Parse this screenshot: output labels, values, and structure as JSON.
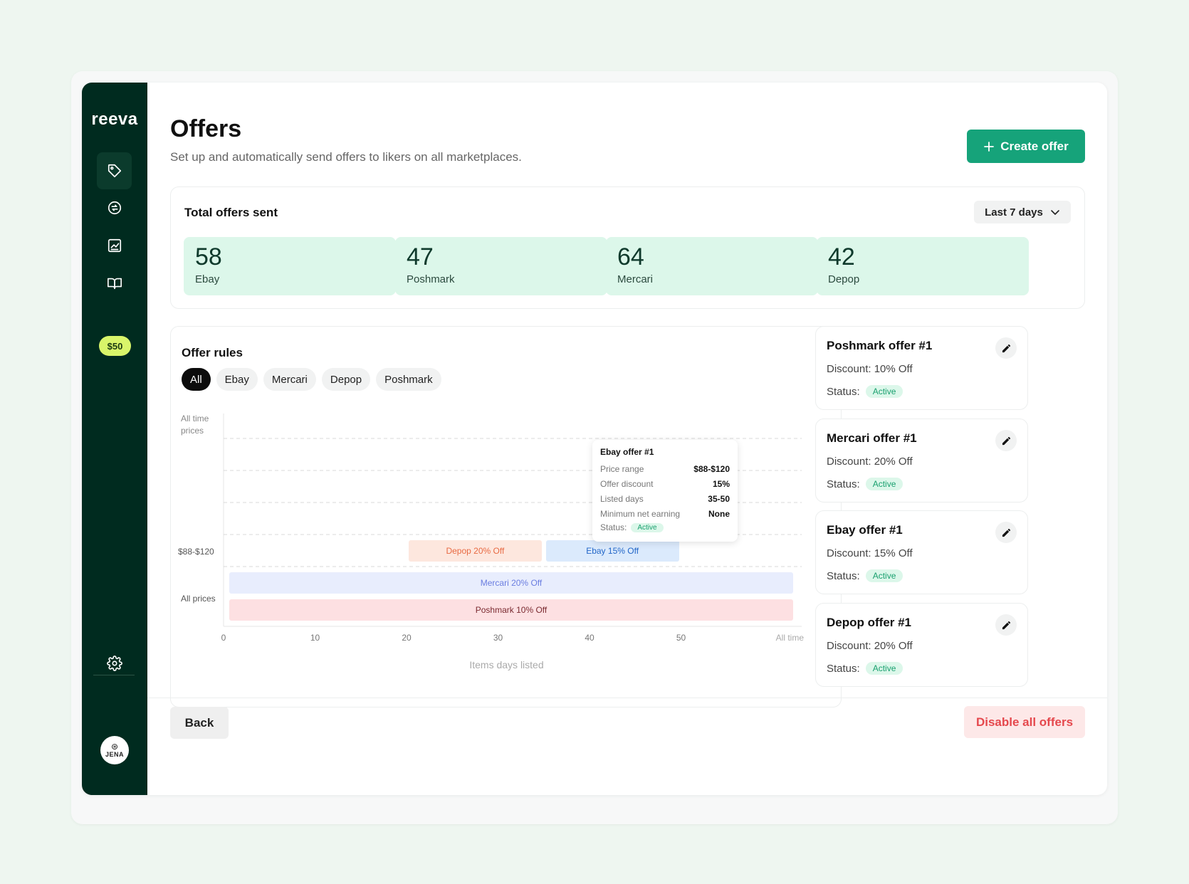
{
  "app": {
    "logo": "reeva",
    "credit": "$50",
    "user_initials": "JENA"
  },
  "header": {
    "title": "Offers",
    "subtitle": "Set up and automatically send offers to likers on all marketplaces.",
    "create_label": "Create offer"
  },
  "totals": {
    "title": "Total offers sent",
    "range": "Last 7 days",
    "stats": [
      {
        "value": "58",
        "label": "Ebay"
      },
      {
        "value": "47",
        "label": "Poshmark"
      },
      {
        "value": "64",
        "label": "Mercari"
      },
      {
        "value": "42",
        "label": "Depop"
      }
    ]
  },
  "rules": {
    "title": "Offer rules",
    "tabs": [
      "All",
      "Ebay",
      "Mercari",
      "Depop",
      "Poshmark"
    ],
    "active_tab": "All"
  },
  "chart_data": {
    "type": "bar",
    "xlabel": "Items days listed",
    "ylabel": "All time prices",
    "x_ticks": [
      "0",
      "10",
      "20",
      "30",
      "40",
      "50",
      "All time"
    ],
    "y_categories": [
      "$88-$120",
      "All prices"
    ],
    "bars": [
      {
        "label": "Depop 20% Off",
        "row": "$88-$120",
        "x_start": 20,
        "x_end": 35,
        "color": "#fde7de",
        "text_color": "#e86a43"
      },
      {
        "label": "Ebay 15% Off",
        "row": "$88-$120",
        "x_start": 35,
        "x_end": 50,
        "color": "#dbeafc",
        "text_color": "#2266c8"
      },
      {
        "label": "Mercari 20% Off",
        "row": "All prices",
        "x_start": 0,
        "x_end": "All time",
        "color": "#e8edfd",
        "text_color": "#6a7de0"
      },
      {
        "label": "Poshmark 10% Off",
        "row": "All prices",
        "x_start": 0,
        "x_end": "All time",
        "color": "#fde0e2",
        "text_color": "#7a2a30"
      }
    ],
    "tooltip": {
      "title": "Ebay offer #1",
      "rows": [
        {
          "label": "Price range",
          "value": "$88-$120"
        },
        {
          "label": "Offer discount",
          "value": "15%"
        },
        {
          "label": "Listed days",
          "value": "35-50"
        },
        {
          "label": "Minimum net earning",
          "value": "None"
        }
      ],
      "status_label": "Status:",
      "status": "Active"
    }
  },
  "offers": [
    {
      "title": "Poshmark offer #1",
      "discount": "Discount: 10% Off",
      "status_label": "Status:",
      "status": "Active"
    },
    {
      "title": "Mercari offer #1",
      "discount": "Discount: 20% Off",
      "status_label": "Status:",
      "status": "Active"
    },
    {
      "title": "Ebay offer #1",
      "discount": "Discount: 15% Off",
      "status_label": "Status:",
      "status": "Active"
    },
    {
      "title": "Depop offer #1",
      "discount": "Discount: 20% Off",
      "status_label": "Status:",
      "status": "Active"
    }
  ],
  "footer": {
    "back_label": "Back",
    "disable_label": "Disable all offers"
  },
  "colors": {
    "sidebar": "#002b1f",
    "accent": "#16a37a",
    "danger": "#e5484d"
  }
}
